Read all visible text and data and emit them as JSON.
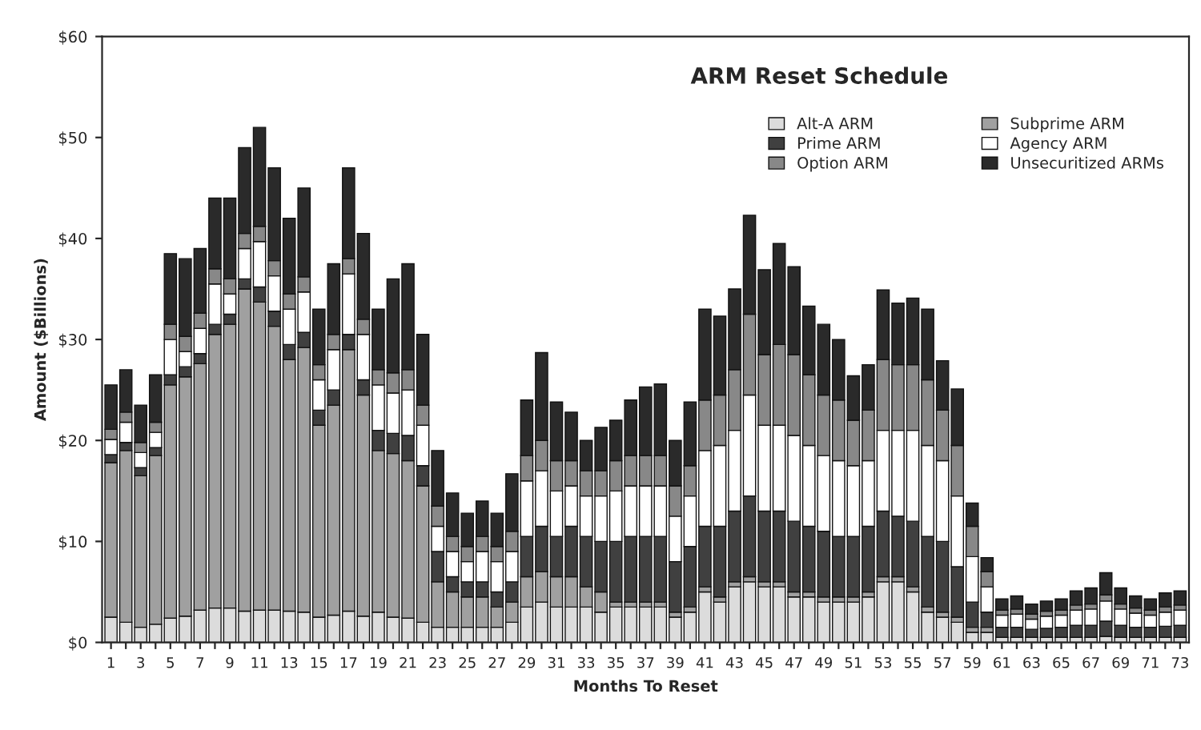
{
  "chart_data": {
    "type": "bar",
    "stacked": true,
    "title": "ARM Reset Schedule",
    "xlabel": "Months To Reset",
    "ylabel": "Amount ($Billions)",
    "categories": [
      "1",
      null,
      "3",
      null,
      "5",
      null,
      "7",
      null,
      "9",
      null,
      "11",
      null,
      "13",
      null,
      "15",
      null,
      "17",
      null,
      "19",
      null,
      "21",
      null,
      "23",
      null,
      "25",
      null,
      "27",
      null,
      "29",
      null,
      "31",
      null,
      "33",
      null,
      "35",
      null,
      "37",
      null,
      "39",
      null,
      "41",
      null,
      "43",
      null,
      "45",
      null,
      "47",
      null,
      "49",
      null,
      "51",
      null,
      "53",
      null,
      "55",
      null,
      "57",
      null,
      "59",
      null,
      "61",
      null,
      "63",
      null,
      "65",
      null,
      "67",
      null,
      "69",
      null,
      "71",
      null,
      "73"
    ],
    "series": [
      {
        "name": "Alt-A ARM",
        "color": "#dcdcdc",
        "values": [
          2.5,
          2,
          1.5,
          1.8,
          2.4,
          2.6,
          3.2,
          3.4,
          3.4,
          3.1,
          3.2,
          3.2,
          3.1,
          3.0,
          2.5,
          2.7,
          3.1,
          2.6,
          3.0,
          2.5,
          2.4,
          2.0,
          1.5,
          1.5,
          1.5,
          1.5,
          1.5,
          2,
          3.5,
          4,
          3.5,
          3.5,
          3.5,
          3,
          3.5,
          3.5,
          3.5,
          3.5,
          2.5,
          3,
          5,
          4,
          5.5,
          6,
          5.5,
          5.5,
          4.5,
          4.5,
          4,
          4,
          4,
          4.5,
          6,
          6,
          5,
          3,
          2.5,
          2,
          1,
          1,
          0.5,
          0.5,
          0.5,
          0.5,
          0.5,
          0.5,
          0.5,
          0.6,
          0.5,
          0.5,
          0.5,
          0.5,
          0.5
        ]
      },
      {
        "name": "Subprime ARM",
        "color": "#a0a0a0",
        "values": [
          15.3,
          17,
          15,
          16.7,
          23.1,
          23.7,
          24.4,
          27.1,
          28.1,
          31.9,
          30.5,
          28.1,
          24.9,
          26.2,
          19,
          20.8,
          25.9,
          21.9,
          16,
          16.2,
          15.6,
          13.5,
          4.5,
          3.5,
          3,
          3,
          2,
          2,
          3,
          3,
          3,
          3,
          2,
          2,
          0.5,
          0.5,
          0.5,
          0.5,
          0.5,
          0.5,
          0.5,
          0.5,
          0.5,
          0.5,
          0.5,
          0.5,
          0.5,
          0.5,
          0.5,
          0.5,
          0.5,
          0.5,
          0.5,
          0.5,
          0.5,
          0.5,
          0.5,
          0.5,
          0.5,
          0.5,
          null,
          null,
          null,
          null,
          null,
          null,
          null,
          null,
          null,
          null,
          null,
          null,
          null
        ]
      },
      {
        "name": "Prime ARM",
        "color": "#404040",
        "values": [
          0.8,
          0.8,
          0.8,
          0.8,
          1,
          1,
          1,
          1,
          1,
          1,
          1.5,
          1.5,
          1.5,
          1.5,
          1.5,
          1.5,
          1.5,
          1.5,
          2,
          2,
          2.5,
          2,
          3,
          1.5,
          1.5,
          1.5,
          1.5,
          2,
          4,
          4.5,
          4,
          5,
          5,
          5,
          6,
          6.5,
          6.5,
          6.5,
          5,
          6,
          6,
          7,
          7,
          8,
          7,
          7,
          7,
          6.5,
          6.5,
          6,
          6,
          6.5,
          6.5,
          6,
          6.5,
          7,
          7,
          5,
          2.5,
          1.5,
          1,
          1,
          0.8,
          0.9,
          1,
          1.2,
          1.2,
          1.5,
          1.2,
          1,
          1,
          1.1,
          1.2
        ]
      },
      {
        "name": "Agency ARM",
        "color": "#ffffff",
        "values": [
          1.5,
          2,
          1.5,
          1.5,
          3.5,
          1.5,
          2.5,
          4,
          2,
          3,
          4.5,
          3.5,
          3.5,
          4,
          3,
          4,
          6,
          4.5,
          4.5,
          4,
          4.5,
          4,
          2.5,
          2.5,
          2,
          3,
          3,
          3,
          5.5,
          5.5,
          4.5,
          4,
          4,
          4.5,
          5,
          5,
          5,
          5,
          4.5,
          5,
          7.5,
          8,
          8,
          10,
          8.5,
          8.5,
          8.5,
          8,
          7.5,
          7.5,
          7,
          6.5,
          8,
          8.5,
          9,
          9,
          8,
          7,
          4.5,
          2.5,
          1.2,
          1.3,
          1.0,
          1.2,
          1.2,
          1.5,
          1.6,
          2,
          1.6,
          1.4,
          1.2,
          1.4,
          1.5
        ]
      },
      {
        "name": "Option ARM",
        "color": "#888888",
        "values": [
          1,
          1,
          1,
          1,
          1.5,
          1.5,
          1.5,
          1.5,
          1.5,
          1.5,
          1.5,
          1.5,
          1.5,
          1.5,
          1.5,
          1.5,
          1.5,
          1.5,
          1.5,
          2,
          2,
          2,
          2,
          1.5,
          1.5,
          1.5,
          1.5,
          2,
          2.5,
          3,
          3,
          2.5,
          2.5,
          2.5,
          3,
          3,
          3,
          3,
          3,
          3,
          5,
          5,
          6,
          8,
          7,
          8,
          8,
          7,
          6,
          6,
          4.5,
          5,
          7,
          6.5,
          6.5,
          6.5,
          5,
          5,
          3,
          1.5,
          0.5,
          0.5,
          0.5,
          0.5,
          0.5,
          0.5,
          0.5,
          0.6,
          0.5,
          0.5,
          0.5,
          0.5,
          0.5
        ]
      },
      {
        "name": "Unsecuritized ARMs",
        "color": "#2a2a2a",
        "values": [
          4.4,
          4.2,
          3.7,
          4.7,
          7,
          7.7,
          6.4,
          7,
          8,
          8.5,
          9.8,
          9.2,
          7.5,
          8.8,
          5.5,
          7,
          9,
          8.5,
          6,
          9.3,
          10.5,
          7,
          5.5,
          4.3,
          3.3,
          3.5,
          3.3,
          5.7,
          5.5,
          8.7,
          5.8,
          4.8,
          3,
          4.3,
          4,
          5.5,
          6.8,
          7.1,
          4.5,
          6.3,
          9,
          7.8,
          8,
          9.8,
          8.4,
          10,
          8.7,
          6.8,
          7,
          6,
          4.4,
          4.5,
          6.9,
          6.1,
          6.6,
          7,
          4.9,
          5.6,
          2.3,
          1.4,
          1.1,
          1.3,
          1.0,
          1.0,
          1.1,
          1.4,
          1.6,
          2.2,
          1.6,
          1.2,
          1.1,
          1.4,
          1.4
        ]
      }
    ],
    "ylim": [
      0,
      60
    ],
    "yticks": [
      {
        "value": 0,
        "label": "$0"
      },
      {
        "value": 10,
        "label": "$10"
      },
      {
        "value": 20,
        "label": "$20"
      },
      {
        "value": 30,
        "label": "$30"
      },
      {
        "value": 40,
        "label": "$40"
      },
      {
        "value": 50,
        "label": "$50"
      },
      {
        "value": 60,
        "label": "$60"
      }
    ],
    "grid": false,
    "legend": "top right"
  }
}
